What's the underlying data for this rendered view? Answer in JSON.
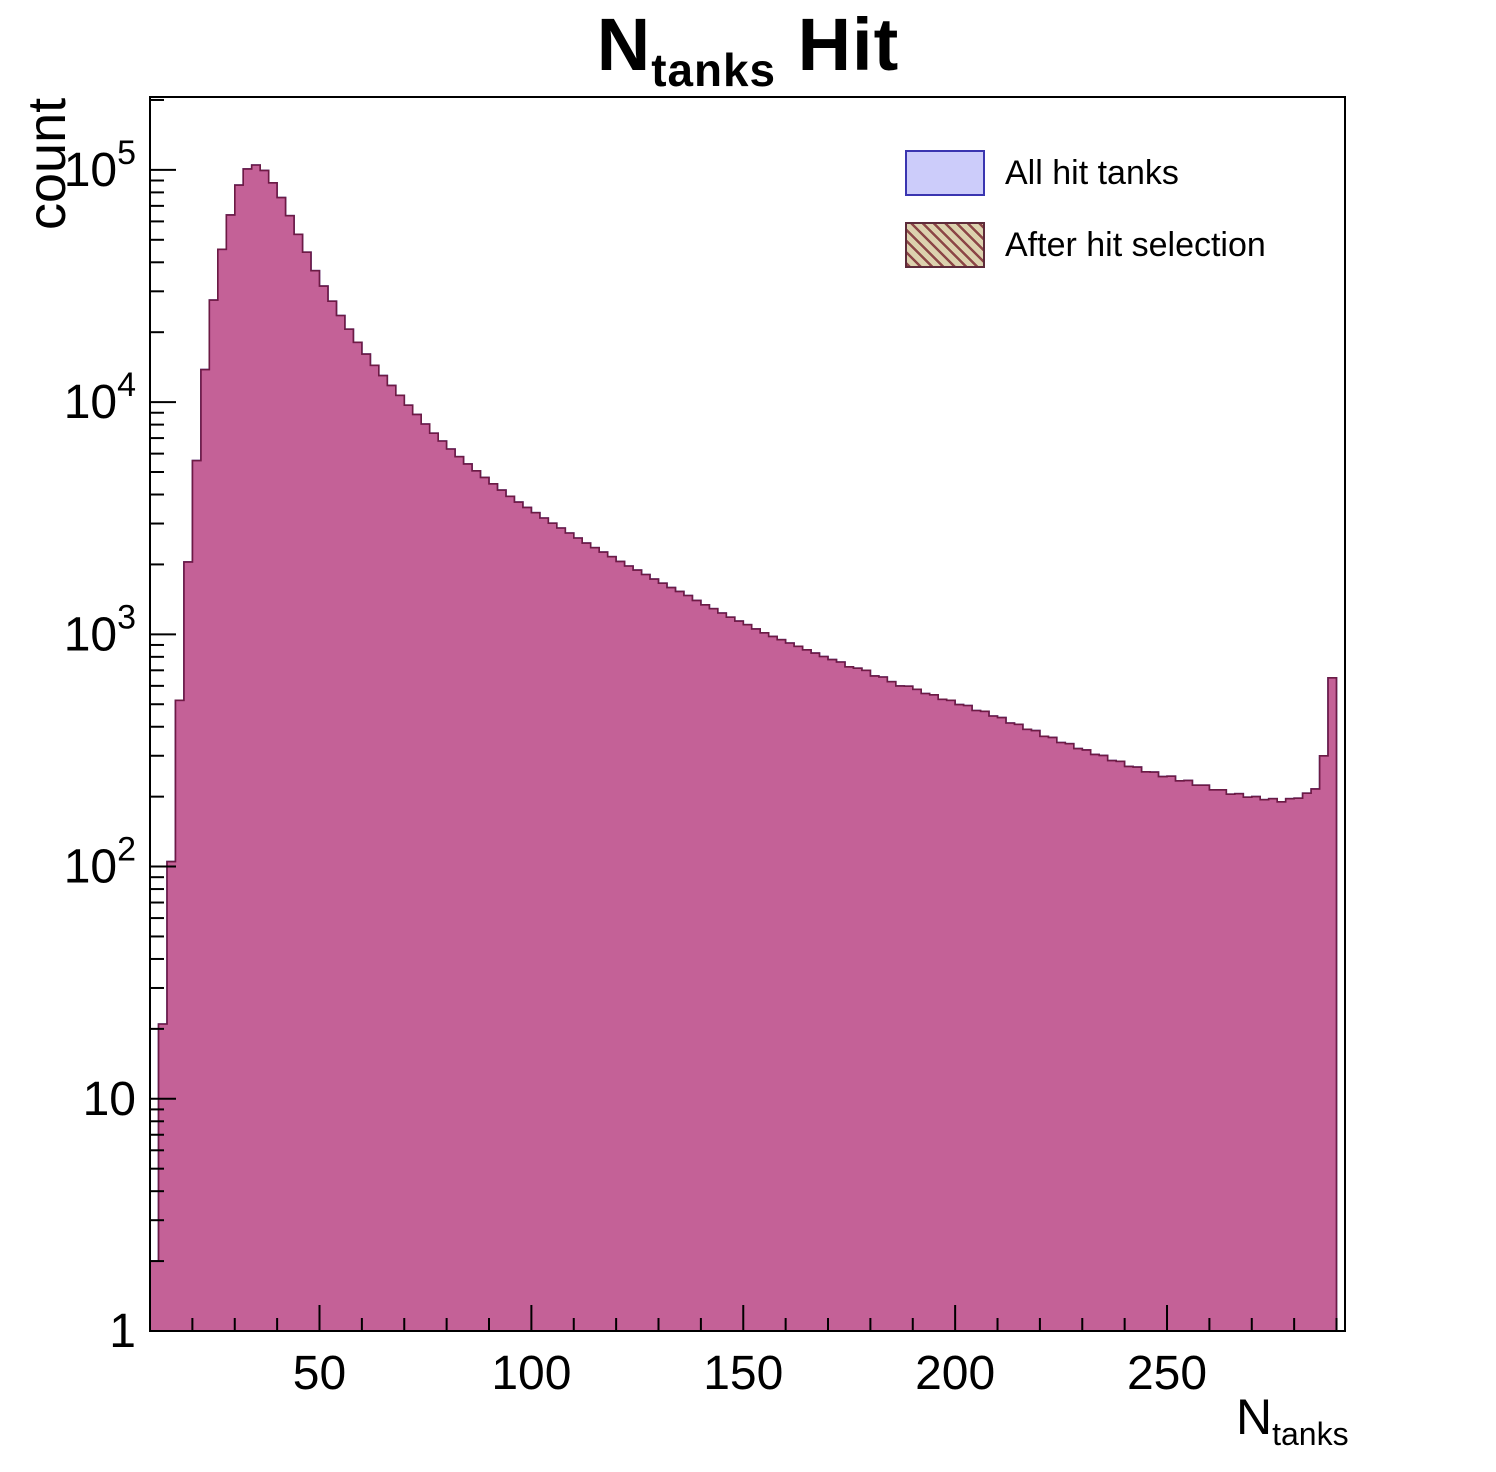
{
  "title": {
    "main": "N",
    "sub": "tanks",
    "rest": " Hit"
  },
  "axes": {
    "y_label": "count",
    "x_label_main": "N",
    "x_label_sub": "tanks"
  },
  "legend": {
    "items": [
      {
        "label": "All hit tanks",
        "swatch": "solid-lavender"
      },
      {
        "label": "After hit selection",
        "swatch": "hatched-red"
      }
    ]
  },
  "colors": {
    "series0_fill": "#ccccfa",
    "series0_stroke": "#3a35b0",
    "series1_fill": "rgba(190,30,90,0.62)",
    "series1_stroke": "rgba(110,25,60,0.9)",
    "frame": "#000000"
  },
  "chart_data": {
    "type": "bar",
    "style": "step-histogram",
    "title": "N_tanks Hit",
    "xlabel": "N_tanks",
    "ylabel": "count",
    "xlim": [
      10,
      292
    ],
    "ylim": [
      1,
      206000
    ],
    "log_y": true,
    "grid": false,
    "legend_position": "top-right",
    "bin_start": 10,
    "bin_width": 2,
    "x_major_ticks": [
      50,
      100,
      150,
      200,
      250
    ],
    "x_minor_tick_step": 10,
    "y_ticks": [
      {
        "v": 1,
        "label": "1"
      },
      {
        "v": 10,
        "label": "10"
      },
      {
        "v": 100,
        "label": "10^2"
      },
      {
        "v": 1000,
        "label": "10^3"
      },
      {
        "v": 10000,
        "label": "10^4"
      },
      {
        "v": 100000,
        "label": "10^5"
      }
    ],
    "series": [
      {
        "name": "All hit tanks",
        "values": [
          2,
          21,
          105,
          520,
          2050,
          5600,
          13800,
          27500,
          45500,
          64000,
          86000,
          101000,
          105000,
          99500,
          88000,
          76000,
          63500,
          52800,
          44200,
          36800,
          31600,
          27200,
          23600,
          20600,
          18100,
          16100,
          14400,
          13000,
          11800,
          10700,
          9700,
          8850,
          8050,
          7350,
          6800,
          6280,
          5820,
          5420,
          5060,
          4740,
          4450,
          4180,
          3930,
          3710,
          3520,
          3340,
          3170,
          3010,
          2870,
          2730,
          2600,
          2470,
          2360,
          2260,
          2160,
          2060,
          1970,
          1890,
          1810,
          1730,
          1660,
          1590,
          1530,
          1470,
          1400,
          1340,
          1290,
          1235,
          1185,
          1140,
          1100,
          1055,
          1015,
          980,
          948,
          918,
          888,
          858,
          830,
          803,
          778,
          760,
          725,
          715,
          700,
          662,
          655,
          625,
          600,
          598,
          580,
          556,
          549,
          525,
          520,
          498,
          494,
          470,
          466,
          445,
          438,
          415,
          410,
          390,
          385,
          364,
          360,
          342,
          338,
          322,
          318,
          304,
          301,
          286,
          284,
          270,
          268,
          256,
          255,
          244,
          245,
          234,
          235,
          224,
          224,
          214,
          214,
          205,
          206,
          199,
          200,
          194,
          196,
          190,
          196,
          197,
          207,
          216,
          300,
          650
        ]
      },
      {
        "name": "After hit selection",
        "values": [
          2,
          21,
          105,
          520,
          2050,
          5600,
          13800,
          27500,
          45500,
          64000,
          86000,
          101000,
          105000,
          99500,
          88000,
          76000,
          63500,
          52800,
          44200,
          36800,
          31600,
          27200,
          23600,
          20600,
          18100,
          16100,
          14400,
          13000,
          11800,
          10700,
          9700,
          8850,
          8050,
          7350,
          6800,
          6280,
          5820,
          5420,
          5060,
          4740,
          4450,
          4180,
          3930,
          3710,
          3520,
          3340,
          3170,
          3010,
          2870,
          2730,
          2600,
          2470,
          2360,
          2260,
          2160,
          2060,
          1970,
          1890,
          1810,
          1730,
          1660,
          1590,
          1530,
          1470,
          1400,
          1340,
          1290,
          1235,
          1185,
          1140,
          1100,
          1055,
          1015,
          980,
          948,
          918,
          888,
          858,
          830,
          803,
          778,
          760,
          725,
          715,
          700,
          662,
          655,
          625,
          600,
          598,
          580,
          556,
          549,
          525,
          520,
          498,
          494,
          470,
          466,
          445,
          438,
          415,
          410,
          390,
          385,
          364,
          360,
          342,
          338,
          322,
          318,
          304,
          301,
          286,
          284,
          270,
          268,
          256,
          255,
          244,
          245,
          234,
          235,
          224,
          224,
          214,
          214,
          205,
          206,
          199,
          200,
          194,
          196,
          190,
          196,
          197,
          207,
          216,
          300,
          650
        ]
      }
    ]
  }
}
